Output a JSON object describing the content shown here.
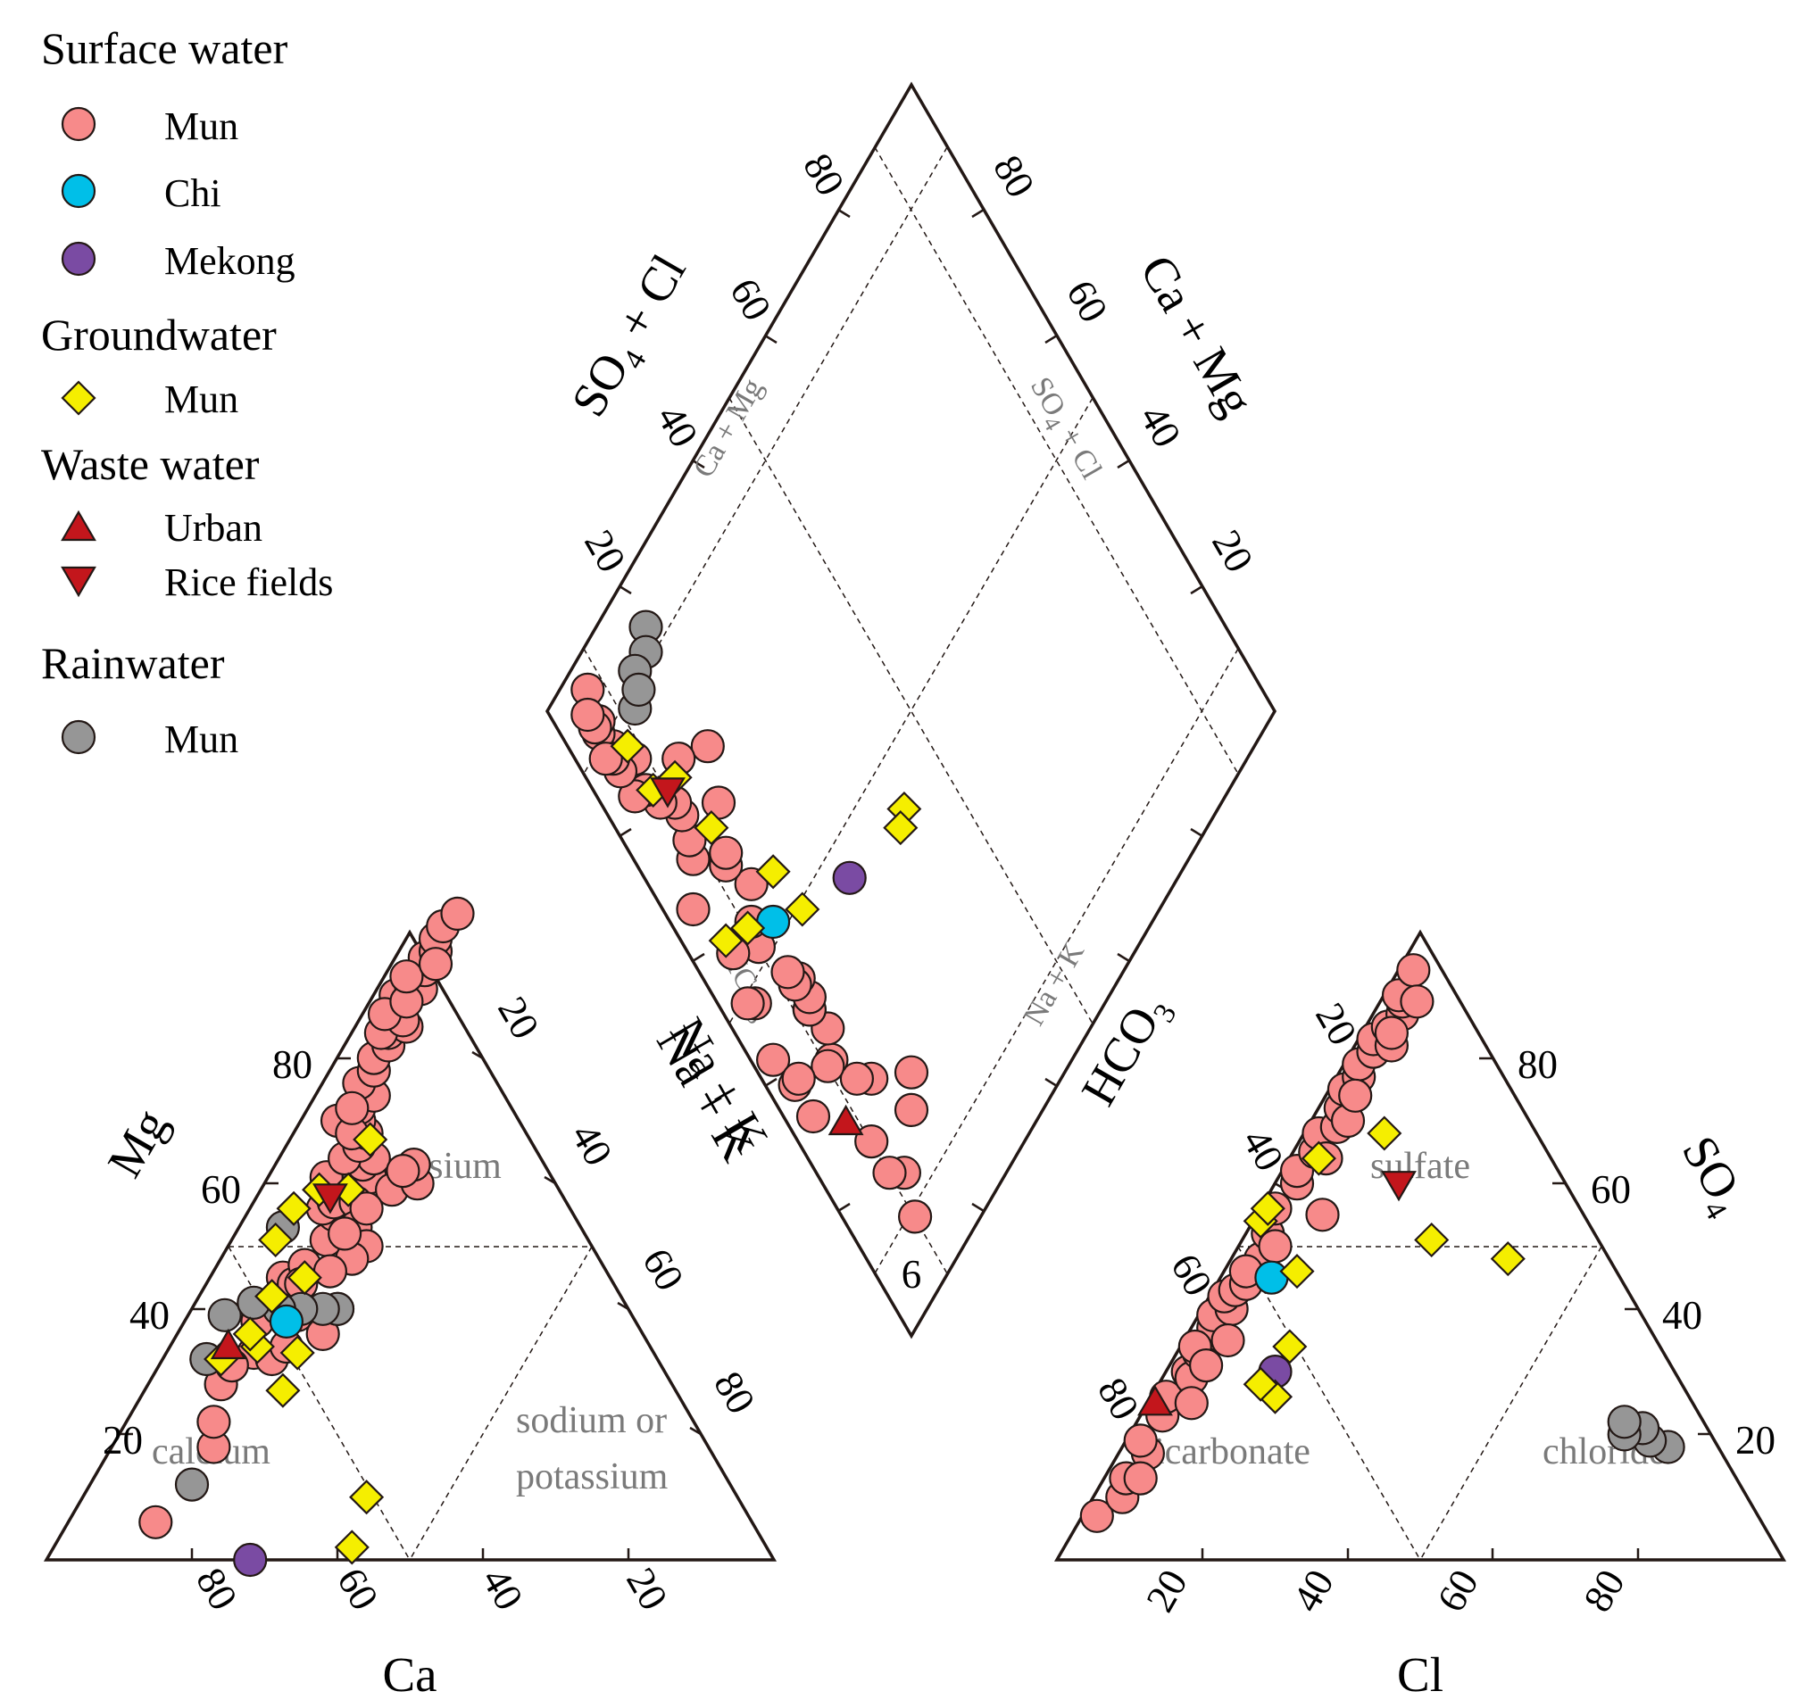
{
  "colors": {
    "surface_mun": "#f78a8a",
    "surface_chi": "#00bfe8",
    "surface_mekong": "#7a4ba3",
    "ground_mun": "#f5ee00",
    "waste_urban": "#c3161c",
    "waste_rice": "#c3161c",
    "rain_mun": "#969696"
  },
  "legend": {
    "groups": [
      {
        "title": "Surface water",
        "items": [
          {
            "label": "Mun",
            "marker": "circle",
            "color": "#f78a8a"
          },
          {
            "label": "Chi",
            "marker": "circle",
            "color": "#00bfe8"
          },
          {
            "label": "Mekong",
            "marker": "circle",
            "color": "#7a4ba3"
          }
        ]
      },
      {
        "title": "Groundwater",
        "items": [
          {
            "label": "Mun",
            "marker": "diamond",
            "color": "#f5ee00"
          }
        ]
      },
      {
        "title": "Waste water",
        "items": [
          {
            "label": "Urban",
            "marker": "triangle-up",
            "color": "#c3161c"
          },
          {
            "label": "Rice fields",
            "marker": "triangle-down",
            "color": "#c3161c"
          }
        ]
      },
      {
        "title": "Rainwater",
        "items": [
          {
            "label": "Mun",
            "marker": "circle",
            "color": "#969696"
          }
        ]
      }
    ]
  },
  "chart_data": {
    "type": "scatter",
    "subtype": "piper-diagram",
    "ternary_ticks": [
      "20",
      "40",
      "60",
      "80"
    ],
    "cation_triangle": {
      "axis_titles": {
        "left": "Mg",
        "bottom": "Ca",
        "right": "Na + K"
      },
      "regions": [
        "magnesium",
        "calcium",
        "sodium or",
        "potassium"
      ]
    },
    "anion_triangle": {
      "axis_titles": {
        "left": "HCO3",
        "bottom": "Cl",
        "right": "SO4"
      },
      "regions": [
        "sulfate",
        "bicarbonate",
        "chloride"
      ]
    },
    "diamond": {
      "axis_titles": {
        "upper_left": "SO4 + Cl",
        "upper_right": "Ca + Mg"
      },
      "guide_labels": [
        "Ca + Mg",
        "SO4 + Cl",
        "HCO3",
        "Na + K"
      ],
      "corner_label": "6"
    },
    "series": [
      {
        "name": "Surface water – Mun",
        "marker": "circle",
        "color": "#f78a8a",
        "cation_values_mg_naK": [
          [
            28,
            10
          ],
          [
            33,
            12
          ],
          [
            31,
            10
          ],
          [
            38,
            10
          ],
          [
            39,
            15
          ],
          [
            41,
            13
          ],
          [
            43,
            11
          ],
          [
            45,
            10
          ],
          [
            42,
            13
          ],
          [
            44,
            12
          ],
          [
            47,
            12
          ],
          [
            44,
            13
          ],
          [
            51,
            13
          ],
          [
            55,
            12
          ],
          [
            58,
            12
          ],
          [
            56,
            10
          ],
          [
            57,
            11
          ],
          [
            61,
            14
          ],
          [
            63,
            12
          ],
          [
            64,
            13
          ],
          [
            61,
            8
          ],
          [
            64,
            9
          ],
          [
            66,
            10
          ],
          [
            68,
            10
          ],
          [
            70,
            8
          ],
          [
            72,
            7
          ],
          [
            70,
            5
          ],
          [
            74,
            8
          ],
          [
            76,
            5
          ],
          [
            78,
            6
          ],
          [
            80,
            5
          ],
          [
            82,
            6
          ],
          [
            84,
            5
          ],
          [
            85,
            7
          ],
          [
            87,
            5
          ],
          [
            88,
            4
          ],
          [
            90,
            3
          ],
          [
            92,
            4
          ],
          [
            91,
            6
          ],
          [
            94,
            5
          ],
          [
            96,
            4
          ],
          [
            97,
            5
          ],
          [
            99,
            4
          ],
          [
            101,
            4
          ],
          [
            103,
            5
          ],
          [
            59,
            18
          ],
          [
            60,
            21
          ],
          [
            63,
            19
          ],
          [
            57,
            14
          ],
          [
            53,
            16
          ],
          [
            50,
            19
          ],
          [
            62,
            18
          ],
          [
            48,
            18
          ],
          [
            46,
            16
          ],
          [
            56,
            16
          ],
          [
            84,
            4
          ],
          [
            86,
            6
          ],
          [
            87,
            3
          ],
          [
            89,
            5
          ],
          [
            93,
            3
          ],
          [
            95,
            6
          ],
          [
            6,
            12
          ],
          [
            18,
            14
          ],
          [
            22,
            12
          ],
          [
            32,
            15
          ],
          [
            34,
            16
          ],
          [
            36,
            20
          ],
          [
            40,
            20
          ],
          [
            52,
            15
          ],
          [
            68,
            8
          ],
          [
            72,
            6
          ]
        ],
        "anion_values_so4_cl": [
          [
            7,
            2
          ],
          [
            10,
            4
          ],
          [
            13,
            3
          ],
          [
            17,
            4
          ],
          [
            23,
            3
          ],
          [
            26,
            2
          ],
          [
            30,
            3
          ],
          [
            29,
            4
          ],
          [
            33,
            3
          ],
          [
            36,
            4
          ],
          [
            37,
            3
          ],
          [
            39,
            2
          ],
          [
            40,
            4
          ],
          [
            42,
            2
          ],
          [
            43,
            3
          ],
          [
            48,
            4
          ],
          [
            52,
            3
          ],
          [
            56,
            2
          ],
          [
            60,
            3
          ],
          [
            62,
            2
          ],
          [
            65,
            3
          ],
          [
            68,
            2
          ],
          [
            69,
            4
          ],
          [
            72,
            3
          ],
          [
            75,
            2
          ],
          [
            77,
            3
          ],
          [
            79,
            2
          ],
          [
            81,
            3
          ],
          [
            83,
            2
          ],
          [
            85,
            3
          ],
          [
            87,
            4
          ],
          [
            89,
            3
          ],
          [
            90,
            2
          ],
          [
            94,
            2
          ],
          [
            89,
            5
          ],
          [
            25,
            6
          ],
          [
            35,
            6
          ],
          [
            55,
            9
          ],
          [
            50,
            5
          ],
          [
            82,
            5
          ],
          [
            84,
            4
          ],
          [
            44,
            4
          ],
          [
            46,
            3
          ],
          [
            34,
            2
          ],
          [
            31,
            5
          ],
          [
            13,
            5
          ],
          [
            19,
            2
          ],
          [
            70,
            5
          ],
          [
            74,
            4
          ],
          [
            64,
            5
          ]
        ]
      },
      {
        "name": "Surface water – Chi",
        "marker": "circle",
        "color": "#00bfe8",
        "cation_values_mg_naK": [
          [
            38,
            14
          ]
        ],
        "anion_values_so4_cl": [
          [
            45,
            7
          ]
        ]
      },
      {
        "name": "Surface water – Mekong",
        "marker": "circle",
        "color": "#7a4ba3",
        "cation_values_mg_naK": [
          [
            0,
            28
          ]
        ],
        "anion_values_so4_cl": [
          [
            30,
            15
          ]
        ]
      },
      {
        "name": "Groundwater – Mun",
        "marker": "diamond",
        "color": "#f5ee00",
        "cation_values_mg_naK": [
          [
            2,
            41
          ],
          [
            10,
            39
          ],
          [
            27,
            19
          ],
          [
            33,
            18
          ],
          [
            34,
            12
          ],
          [
            32,
            8
          ],
          [
            45,
            13
          ],
          [
            42,
            10
          ],
          [
            51,
            6
          ],
          [
            59,
            8
          ],
          [
            59,
            12
          ],
          [
            67,
            11
          ],
          [
            56,
            6
          ],
          [
            36,
            10
          ]
        ],
        "anion_values_so4_cl": [
          [
            26,
            17
          ],
          [
            28,
            14
          ],
          [
            34,
            15
          ],
          [
            46,
            10
          ],
          [
            51,
            26
          ],
          [
            48,
            38
          ],
          [
            64,
            4
          ],
          [
            54,
            1
          ],
          [
            56,
            1
          ],
          [
            68,
            11
          ]
        ]
      },
      {
        "name": "Waste water – Urban",
        "marker": "triangle-up",
        "color": "#c3161c",
        "cation_values_mg_naK": [
          [
            34,
            8
          ]
        ],
        "anion_values_so4_cl": [
          [
            25,
            1
          ]
        ]
      },
      {
        "name": "Waste water – Rice fields",
        "marker": "triangle-down",
        "color": "#c3161c",
        "cation_values_mg_naK": [
          [
            58,
            10
          ]
        ],
        "anion_values_so4_cl": [
          [
            60,
            17
          ]
        ]
      },
      {
        "name": "Rainwater – Mun",
        "marker": "circle",
        "color": "#969696",
        "cation_values_mg_naK": [
          [
            40,
            20
          ],
          [
            40,
            18
          ],
          [
            40,
            15
          ],
          [
            40,
            12
          ],
          [
            12,
            14
          ],
          [
            53,
            6
          ],
          [
            32,
            6
          ],
          [
            39,
            5
          ],
          [
            41,
            8
          ]
        ],
        "anion_values_so4_cl": [
          [
            18,
            75
          ],
          [
            19,
            72
          ],
          [
            21,
            70
          ],
          [
            20,
            68
          ],
          [
            22,
            67
          ]
        ]
      }
    ]
  }
}
